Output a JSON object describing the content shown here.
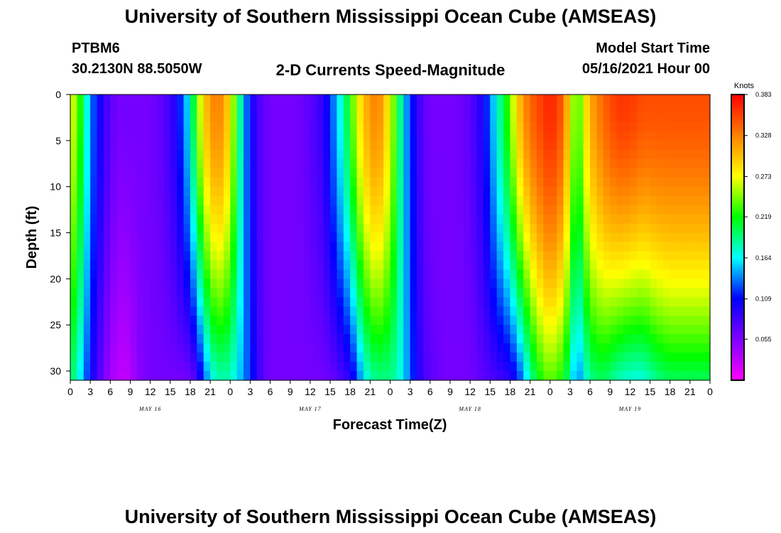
{
  "header": {
    "title": "University of Southern Mississippi Ocean Cube (AMSEAS)",
    "station": "PTBM6",
    "coords": "30.2130N  88.5050W",
    "variable": "2-D Currents Speed-Magnitude",
    "model_start_label": "Model Start Time",
    "model_start_value": "05/16/2021 Hour 00"
  },
  "footer": {
    "title": "University of Southern Mississippi Ocean Cube (AMSEAS)"
  },
  "chart_data": {
    "type": "heatmap",
    "title": "2-D Currents Speed-Magnitude",
    "xlabel": "Forecast Time(Z)",
    "ylabel": "Depth (ft)",
    "x_tick_labels": [
      "0",
      "3",
      "6",
      "9",
      "12",
      "15",
      "18",
      "21",
      "0",
      "3",
      "6",
      "9",
      "12",
      "15",
      "18",
      "21",
      "0",
      "3",
      "6",
      "9",
      "12",
      "15",
      "18",
      "21",
      "0",
      "3",
      "6",
      "9",
      "12",
      "15",
      "18",
      "21",
      "0"
    ],
    "x_range_hours": [
      0,
      96
    ],
    "day_labels": [
      {
        "label": "MAY 16",
        "hour": 12
      },
      {
        "label": "MAY 17",
        "hour": 36
      },
      {
        "label": "MAY 18",
        "hour": 60
      },
      {
        "label": "MAY 19",
        "hour": 84
      }
    ],
    "y_ticks": [
      0,
      5,
      10,
      15,
      20,
      25,
      30
    ],
    "y_range": [
      0,
      31
    ],
    "y_inverted": true,
    "colorbar": {
      "unit": "Knots",
      "ticks": [
        "0.383",
        "0.328",
        "0.273",
        "0.219",
        "0.164",
        "0.109",
        "0.055"
      ],
      "range": [
        0.0,
        0.383
      ],
      "colors": [
        "#ff00ff",
        "#8000ff",
        "#0000ff",
        "#00ffff",
        "#00ff00",
        "#ffff00",
        "#ff8000",
        "#ff0000"
      ]
    },
    "speed_profile_knots": {
      "hours": [
        0,
        1,
        2,
        3,
        4,
        5,
        6,
        7,
        8,
        9,
        10,
        12,
        14,
        16,
        18,
        19,
        20,
        21,
        22,
        23,
        24,
        25,
        26,
        27,
        28,
        29,
        30,
        32,
        34,
        36,
        38,
        40,
        42,
        43,
        44,
        45,
        46,
        47,
        48,
        49,
        50,
        51,
        52,
        53,
        54,
        56,
        58,
        60,
        62,
        64,
        66,
        67,
        68,
        69,
        70,
        71,
        72,
        73,
        74,
        75,
        76,
        77,
        78,
        80,
        82,
        84,
        86,
        88,
        90,
        92,
        94,
        96
      ],
      "surface": [
        0.27,
        0.25,
        0.2,
        0.14,
        0.11,
        0.09,
        0.07,
        0.06,
        0.06,
        0.06,
        0.06,
        0.06,
        0.07,
        0.1,
        0.17,
        0.24,
        0.29,
        0.32,
        0.33,
        0.32,
        0.28,
        0.22,
        0.15,
        0.11,
        0.08,
        0.07,
        0.06,
        0.06,
        0.06,
        0.07,
        0.09,
        0.15,
        0.22,
        0.27,
        0.3,
        0.32,
        0.33,
        0.31,
        0.27,
        0.22,
        0.16,
        0.12,
        0.09,
        0.07,
        0.06,
        0.06,
        0.06,
        0.07,
        0.1,
        0.17,
        0.24,
        0.29,
        0.32,
        0.34,
        0.35,
        0.36,
        0.37,
        0.36,
        0.34,
        0.28,
        0.22,
        0.27,
        0.31,
        0.34,
        0.36,
        0.36,
        0.35,
        0.35,
        0.35,
        0.35,
        0.35,
        0.35
      ],
      "bottom": [
        0.2,
        0.18,
        0.14,
        0.11,
        0.08,
        0.06,
        0.04,
        0.03,
        0.025,
        0.03,
        0.05,
        0.06,
        0.06,
        0.06,
        0.06,
        0.08,
        0.12,
        0.16,
        0.18,
        0.18,
        0.18,
        0.16,
        0.14,
        0.12,
        0.09,
        0.07,
        0.06,
        0.06,
        0.06,
        0.06,
        0.06,
        0.07,
        0.09,
        0.12,
        0.16,
        0.18,
        0.19,
        0.19,
        0.19,
        0.18,
        0.16,
        0.13,
        0.1,
        0.08,
        0.07,
        0.06,
        0.06,
        0.06,
        0.07,
        0.08,
        0.09,
        0.11,
        0.14,
        0.18,
        0.21,
        0.23,
        0.24,
        0.23,
        0.22,
        0.18,
        0.13,
        0.16,
        0.19,
        0.2,
        0.18,
        0.17,
        0.17,
        0.19,
        0.2,
        0.2,
        0.2,
        0.2
      ]
    }
  }
}
